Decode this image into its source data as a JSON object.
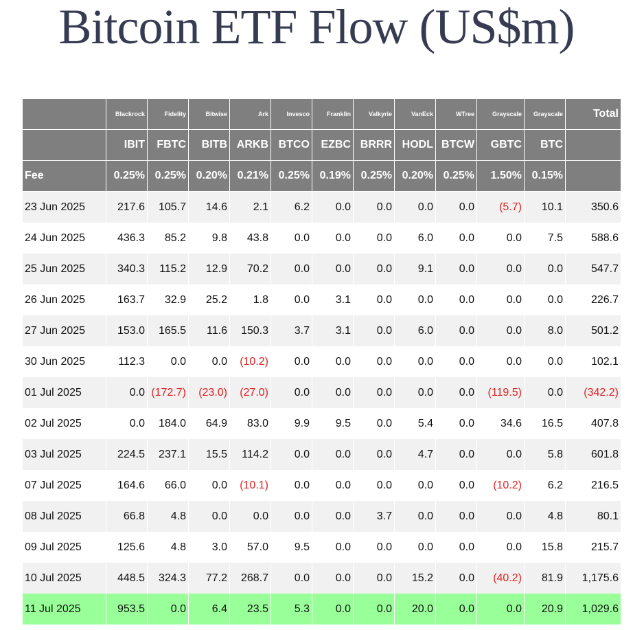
{
  "title": "Bitcoin ETF Flow (US$m)",
  "header": {
    "providers": [
      "Blackrock",
      "Fidelity",
      "Bitwise",
      "Ark",
      "Invesco",
      "Franklin",
      "Valkyrie",
      "VanEck",
      "WTree",
      "Grayscale",
      "Grayscale"
    ],
    "tickers": [
      "IBIT",
      "FBTC",
      "BITB",
      "ARKB",
      "BTCO",
      "EZBC",
      "BRRR",
      "HODL",
      "BTCW",
      "GBTC",
      "BTC"
    ],
    "fee_label": "Fee",
    "fees": [
      "0.25%",
      "0.25%",
      "0.20%",
      "0.21%",
      "0.25%",
      "0.19%",
      "0.25%",
      "0.20%",
      "0.25%",
      "1.50%",
      "0.15%"
    ],
    "total_label": "Total"
  },
  "colors": {
    "header_bg": "#7f7f7f",
    "row_alt": "#f1f1f1",
    "highlight": "#99ff99",
    "negative": "#e02020",
    "title": "#363b52"
  },
  "rows": [
    {
      "date": "23 Jun 2025",
      "values": [
        "217.6",
        "105.7",
        "14.6",
        "2.1",
        "6.2",
        "0.0",
        "0.0",
        "0.0",
        "0.0",
        "(5.7)",
        "10.1"
      ],
      "total": "350.6"
    },
    {
      "date": "24 Jun 2025",
      "values": [
        "436.3",
        "85.2",
        "9.8",
        "43.8",
        "0.0",
        "0.0",
        "0.0",
        "6.0",
        "0.0",
        "0.0",
        "7.5"
      ],
      "total": "588.6"
    },
    {
      "date": "25 Jun 2025",
      "values": [
        "340.3",
        "115.2",
        "12.9",
        "70.2",
        "0.0",
        "0.0",
        "0.0",
        "9.1",
        "0.0",
        "0.0",
        "0.0"
      ],
      "total": "547.7"
    },
    {
      "date": "26 Jun 2025",
      "values": [
        "163.7",
        "32.9",
        "25.2",
        "1.8",
        "0.0",
        "3.1",
        "0.0",
        "0.0",
        "0.0",
        "0.0",
        "0.0"
      ],
      "total": "226.7"
    },
    {
      "date": "27 Jun 2025",
      "values": [
        "153.0",
        "165.5",
        "11.6",
        "150.3",
        "3.7",
        "3.1",
        "0.0",
        "6.0",
        "0.0",
        "0.0",
        "8.0"
      ],
      "total": "501.2"
    },
    {
      "date": "30 Jun 2025",
      "values": [
        "112.3",
        "0.0",
        "0.0",
        "(10.2)",
        "0.0",
        "0.0",
        "0.0",
        "0.0",
        "0.0",
        "0.0",
        "0.0"
      ],
      "total": "102.1"
    },
    {
      "date": "01 Jul 2025",
      "values": [
        "0.0",
        "(172.7)",
        "(23.0)",
        "(27.0)",
        "0.0",
        "0.0",
        "0.0",
        "0.0",
        "0.0",
        "(119.5)",
        "0.0"
      ],
      "total": "(342.2)"
    },
    {
      "date": "02 Jul 2025",
      "values": [
        "0.0",
        "184.0",
        "64.9",
        "83.0",
        "9.9",
        "9.5",
        "0.0",
        "5.4",
        "0.0",
        "34.6",
        "16.5"
      ],
      "total": "407.8"
    },
    {
      "date": "03 Jul 2025",
      "values": [
        "224.5",
        "237.1",
        "15.5",
        "114.2",
        "0.0",
        "0.0",
        "0.0",
        "4.7",
        "0.0",
        "0.0",
        "5.8"
      ],
      "total": "601.8"
    },
    {
      "date": "07 Jul 2025",
      "values": [
        "164.6",
        "66.0",
        "0.0",
        "(10.1)",
        "0.0",
        "0.0",
        "0.0",
        "0.0",
        "0.0",
        "(10.2)",
        "6.2"
      ],
      "total": "216.5"
    },
    {
      "date": "08 Jul 2025",
      "values": [
        "66.8",
        "4.8",
        "0.0",
        "0.0",
        "0.0",
        "0.0",
        "3.7",
        "0.0",
        "0.0",
        "0.0",
        "4.8"
      ],
      "total": "80.1"
    },
    {
      "date": "09 Jul 2025",
      "values": [
        "125.6",
        "4.8",
        "3.0",
        "57.0",
        "9.5",
        "0.0",
        "0.0",
        "0.0",
        "0.0",
        "0.0",
        "15.8"
      ],
      "total": "215.7"
    },
    {
      "date": "10 Jul 2025",
      "values": [
        "448.5",
        "324.3",
        "77.2",
        "268.7",
        "0.0",
        "0.0",
        "0.0",
        "15.2",
        "0.0",
        "(40.2)",
        "81.9"
      ],
      "total": "1,175.6"
    },
    {
      "date": "11 Jul 2025",
      "values": [
        "953.5",
        "0.0",
        "6.4",
        "23.5",
        "5.3",
        "0.0",
        "0.0",
        "20.0",
        "0.0",
        "0.0",
        "20.9"
      ],
      "total": "1,029.6",
      "highlight": true
    }
  ]
}
